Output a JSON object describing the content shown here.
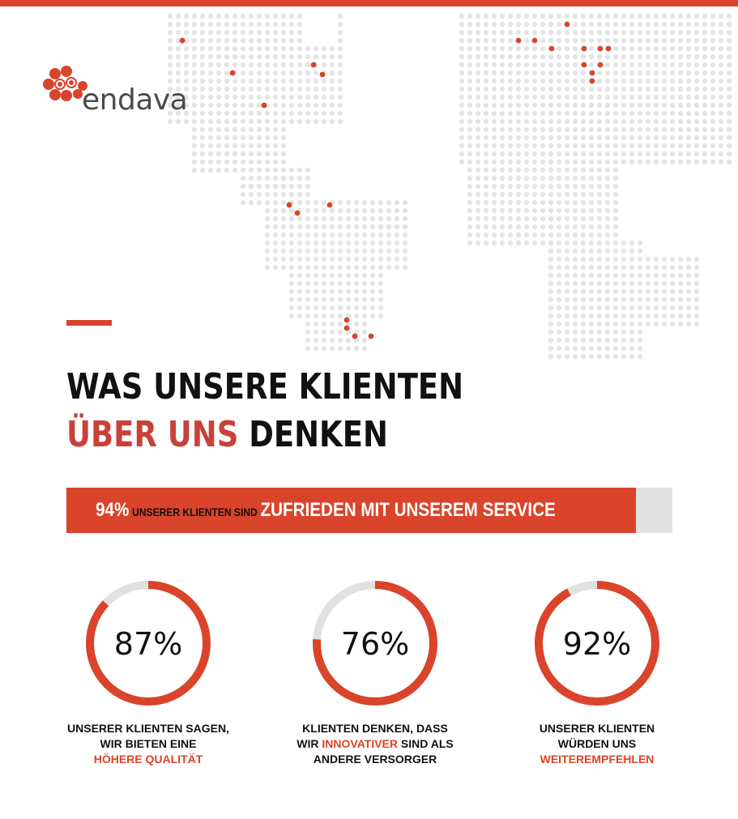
{
  "colors": {
    "accent": "#d9442b",
    "headline_red": "#c8413a",
    "track": "#e1e1e1",
    "map_dot": "#e4e4e4"
  },
  "brand": {
    "name": "endava",
    "logo_icon": "endava-logo-icon"
  },
  "headline": {
    "line1": "WAS UNSERE KLIENTEN",
    "line2_red": "ÜBER UNS",
    "line2_black": "DENKEN"
  },
  "satisfaction": {
    "value_text": "94%",
    "mid_text": "UNSERER KLIENTEN SIND",
    "end_text": "ZUFRIEDEN MIT UNSEREM SERVICE"
  },
  "map": {
    "icon": "world-dot-map",
    "highlight_icon": "office-location-dot"
  },
  "chart_data": {
    "type": "bar+donut",
    "bar": {
      "label": "94% UNSERER KLIENTEN SIND ZUFRIEDEN MIT UNSEREM SERVICE",
      "value": 94,
      "max": 100
    },
    "donuts": [
      {
        "value": 87,
        "value_text": "87%",
        "caption": [
          "UNSERER KLIENTEN SAGEN,",
          "WIR BIETEN EINE"
        ],
        "caption_red": "HÖHERE QUALITÄT"
      },
      {
        "value": 76,
        "value_text": "76%",
        "caption": [
          "KLIENTEN DENKEN, DASS",
          "WIR",
          "SIND ALS",
          "ANDERE VERSORGER"
        ],
        "caption_red": "INNOVATIVER"
      },
      {
        "value": 92,
        "value_text": "92%",
        "caption": [
          "UNSERER KLIENTEN",
          "WÜRDEN UNS"
        ],
        "caption_red": "WEITEREMPFEHLEN"
      }
    ]
  }
}
